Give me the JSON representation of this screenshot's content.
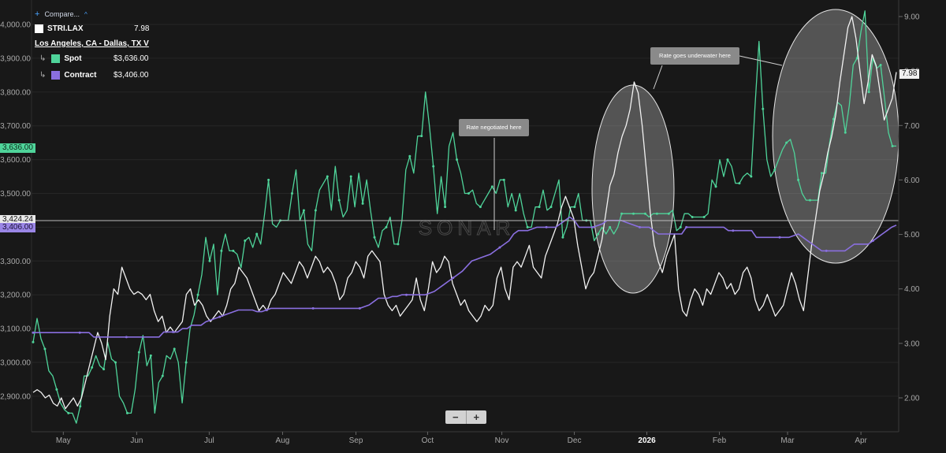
{
  "legend": {
    "compare_label": "Compare...",
    "main_ticker": "STRI.LAX",
    "main_value": "7.98",
    "route": "Los Angeles, CA - Dallas, TX V",
    "spot_label": "Spot",
    "spot_value": "$3,636.00",
    "contract_label": "Contract",
    "contract_value": "$3,406.00"
  },
  "annotations": {
    "negotiated": "Rate negotiated here",
    "underwater": "Rate goes underwater here"
  },
  "tags": {
    "spot_last": "3,636.00",
    "crosshair": "3,424.24",
    "contract_last": "3,406.00",
    "index_last": "7.98"
  },
  "watermark": "SONAR",
  "zoom": {
    "minus": "−",
    "plus": "+"
  },
  "chart_data": {
    "type": "line",
    "left_axis": {
      "ylim": [
        2820,
        4080
      ],
      "ticks": [
        2900,
        3000,
        3100,
        3200,
        3300,
        3400,
        3500,
        3600,
        3700,
        3800,
        3900,
        4000
      ],
      "tick_labels": [
        "2,900.00",
        "3,000.00",
        "3,100.00",
        "3,200.00",
        "3,300.00",
        "3,400.00",
        "3,500.00",
        "3,600.00",
        "3,700.00",
        "3,800.00",
        "3,900.00",
        "4,000.00"
      ]
    },
    "right_axis": {
      "ylim": [
        1.6,
        9.3
      ],
      "ticks": [
        2,
        3,
        4,
        5,
        6,
        7,
        8,
        9
      ],
      "tick_labels": [
        "2.00",
        "3.00",
        "4.00",
        "5.00",
        "6.00",
        "7.00",
        "8.00",
        "9.00"
      ]
    },
    "x_labels": [
      {
        "label": "May",
        "pos": 0.035
      },
      {
        "label": "Jun",
        "pos": 0.12
      },
      {
        "label": "Jul",
        "pos": 0.204
      },
      {
        "label": "Aug",
        "pos": 0.289
      },
      {
        "label": "Sep",
        "pos": 0.374
      },
      {
        "label": "Oct",
        "pos": 0.457
      },
      {
        "label": "Nov",
        "pos": 0.543
      },
      {
        "label": "Dec",
        "pos": 0.627
      },
      {
        "label": "2026",
        "pos": 0.711
      },
      {
        "label": "Feb",
        "pos": 0.795
      },
      {
        "label": "Mar",
        "pos": 0.874
      },
      {
        "label": "Apr",
        "pos": 0.959
      }
    ],
    "series": [
      {
        "name": "Spot",
        "axis": "left",
        "color": "#4fd49a",
        "sample_every": 3,
        "values": [
          3060,
          3130,
          3070,
          3040,
          2975,
          2960,
          2920,
          2880,
          2860,
          2850,
          2850,
          2820,
          2870,
          2960,
          2960,
          2985,
          3020,
          2990,
          2980,
          3060,
          3010,
          3000,
          2900,
          2880,
          2850,
          2850,
          2920,
          3030,
          3080,
          2990,
          3020,
          2850,
          2940,
          2960,
          3020,
          3010,
          3040,
          3000,
          2880,
          3000,
          3100,
          3140,
          3200,
          3260,
          3370,
          3300,
          3350,
          3200,
          3330,
          3380,
          3330,
          3330,
          3320,
          3280,
          3360,
          3370,
          3340,
          3380,
          3350,
          3440,
          3540,
          3410,
          3400,
          3420,
          3420,
          3420,
          3500,
          3570,
          3420,
          3450,
          3350,
          3330,
          3450,
          3510,
          3530,
          3550,
          3450,
          3580,
          3480,
          3430,
          3450,
          3550,
          3460,
          3560,
          3470,
          3540,
          3450,
          3370,
          3340,
          3390,
          3400,
          3430,
          3350,
          3350,
          3420,
          3570,
          3610,
          3560,
          3670,
          3670,
          3800,
          3700,
          3580,
          3440,
          3550,
          3460,
          3640,
          3680,
          3600,
          3560,
          3500,
          3500,
          3510,
          3470,
          3460,
          3480,
          3500,
          3520,
          3500,
          3540,
          3540,
          3460,
          3500,
          3450,
          3500,
          3440,
          3400,
          3400,
          3460,
          3460,
          3510,
          3450,
          3460,
          3500,
          3540,
          3370,
          3400,
          3460,
          3460,
          3500,
          3420,
          3420,
          3420,
          3360,
          3380,
          3400,
          3380,
          3400,
          3380,
          3400,
          3440,
          3440,
          3440,
          3440,
          3440,
          3440,
          3440,
          3430,
          3440,
          3440,
          3440,
          3440,
          3440,
          3450,
          3390,
          3400,
          3440,
          3440,
          3430,
          3430,
          3430,
          3430,
          3440,
          3540,
          3520,
          3600,
          3550,
          3600,
          3580,
          3530,
          3530,
          3550,
          3560,
          3550,
          3760,
          3950,
          3750,
          3600,
          3550,
          3570,
          3600,
          3630,
          3650,
          3660,
          3620,
          3540,
          3500,
          3480,
          3480,
          3480,
          3480,
          3560,
          3560,
          3650,
          3720,
          3770,
          3760,
          3680,
          3760,
          3880,
          3900,
          3980,
          4040,
          3800,
          3900,
          3870,
          3880,
          3780,
          3680,
          3640,
          3640
        ]
      },
      {
        "name": "Contract",
        "axis": "left",
        "color": "#8a6fe0",
        "sample_every": 10,
        "values": [
          3088,
          3088,
          3088,
          3088,
          3088,
          3088,
          3088,
          3088,
          3088,
          3088,
          3088,
          3088,
          3088,
          3075,
          3075,
          3075,
          3075,
          3075,
          3075,
          3075,
          3075,
          3075,
          3075,
          3075,
          3075,
          3075,
          3075,
          3075,
          3090,
          3090,
          3090,
          3090,
          3100,
          3100,
          3110,
          3110,
          3110,
          3120,
          3125,
          3130,
          3135,
          3140,
          3145,
          3150,
          3155,
          3155,
          3155,
          3155,
          3150,
          3150,
          3155,
          3160,
          3160,
          3160,
          3160,
          3160,
          3160,
          3160,
          3160,
          3160,
          3160,
          3160,
          3160,
          3160,
          3160,
          3160,
          3160,
          3160,
          3160,
          3160,
          3160,
          3165,
          3170,
          3180,
          3190,
          3190,
          3190,
          3195,
          3195,
          3200,
          3200,
          3200,
          3200,
          3200,
          3200,
          3205,
          3210,
          3220,
          3230,
          3240,
          3250,
          3260,
          3270,
          3285,
          3300,
          3305,
          3310,
          3315,
          3320,
          3330,
          3340,
          3350,
          3360,
          3380,
          3390,
          3390,
          3390,
          3395,
          3400,
          3400,
          3400,
          3400,
          3400,
          3410,
          3420,
          3430,
          3420,
          3400,
          3400,
          3400,
          3400,
          3405,
          3410,
          3420,
          3420,
          3420,
          3420,
          3415,
          3410,
          3405,
          3400,
          3400,
          3400,
          3390,
          3380,
          3380,
          3380,
          3380,
          3380,
          3380,
          3400,
          3400,
          3400,
          3400,
          3400,
          3400,
          3400,
          3400,
          3400,
          3390,
          3390,
          3390,
          3390,
          3390,
          3390,
          3370,
          3370,
          3370,
          3370,
          3370,
          3370,
          3370,
          3370,
          3375,
          3380,
          3370,
          3360,
          3350,
          3340,
          3330,
          3330,
          3330,
          3330,
          3330,
          3330,
          3340,
          3350,
          3350,
          3350,
          3350,
          3360,
          3370,
          3380,
          3390,
          3400,
          3406
        ]
      },
      {
        "name": "STRI.LAX",
        "axis": "right",
        "color": "#f2f2f2",
        "sample_every": 0,
        "values": [
          2.1,
          2.15,
          2.1,
          2.0,
          2.05,
          1.9,
          1.85,
          2.0,
          1.8,
          1.9,
          2.0,
          1.85,
          2.0,
          2.3,
          2.6,
          2.9,
          3.2,
          3.0,
          2.7,
          3.5,
          4.0,
          3.9,
          4.4,
          4.2,
          4.0,
          3.9,
          3.95,
          3.9,
          3.8,
          3.9,
          3.6,
          3.4,
          3.5,
          3.2,
          3.3,
          3.2,
          3.3,
          3.4,
          3.9,
          4.0,
          3.7,
          3.8,
          3.7,
          3.5,
          3.4,
          3.5,
          3.6,
          3.5,
          3.7,
          4.0,
          4.1,
          4.4,
          4.3,
          4.2,
          4.0,
          3.8,
          3.6,
          3.7,
          3.6,
          3.8,
          3.9,
          4.1,
          4.3,
          4.2,
          4.1,
          4.3,
          4.5,
          4.4,
          4.2,
          4.4,
          4.6,
          4.5,
          4.3,
          4.4,
          4.3,
          4.1,
          3.8,
          3.9,
          4.2,
          4.3,
          4.5,
          4.4,
          4.2,
          4.6,
          4.7,
          4.6,
          4.5,
          3.9,
          3.7,
          3.6,
          3.7,
          3.5,
          3.6,
          3.7,
          3.8,
          4.2,
          3.8,
          3.6,
          4.0,
          4.5,
          4.3,
          4.4,
          4.6,
          4.5,
          4.1,
          3.9,
          3.7,
          3.8,
          3.6,
          3.5,
          3.4,
          3.5,
          3.7,
          3.6,
          3.7,
          4.2,
          4.4,
          4.0,
          3.8,
          4.4,
          4.5,
          4.4,
          4.6,
          4.8,
          4.4,
          4.3,
          4.2,
          4.6,
          4.8,
          5.0,
          5.2,
          5.5,
          5.7,
          5.5,
          5.3,
          4.8,
          4.4,
          4.0,
          4.2,
          4.3,
          4.6,
          4.9,
          5.4,
          5.9,
          6.1,
          6.5,
          6.8,
          7.0,
          7.3,
          7.8,
          7.6,
          7.0,
          6.2,
          5.4,
          4.8,
          4.5,
          4.3,
          4.6,
          4.8,
          5.0,
          4.0,
          3.6,
          3.5,
          3.8,
          4.0,
          3.9,
          3.7,
          4.0,
          3.9,
          4.1,
          4.3,
          4.2,
          4.0,
          4.1,
          3.9,
          4.0,
          4.3,
          4.4,
          4.2,
          3.8,
          3.6,
          3.7,
          3.9,
          3.7,
          3.5,
          3.6,
          3.7,
          4.0,
          4.3,
          4.1,
          3.8,
          3.6,
          4.2,
          4.8,
          5.3,
          5.8,
          6.1,
          6.5,
          6.8,
          7.2,
          7.8,
          8.3,
          8.8,
          9.0,
          8.6,
          8.0,
          7.4,
          7.8,
          8.3,
          8.1,
          7.6,
          7.1,
          7.3,
          7.5,
          7.98
        ]
      }
    ],
    "annotations": [
      {
        "text": "Rate negotiated here"
      },
      {
        "text": "Rate goes underwater here"
      }
    ]
  }
}
